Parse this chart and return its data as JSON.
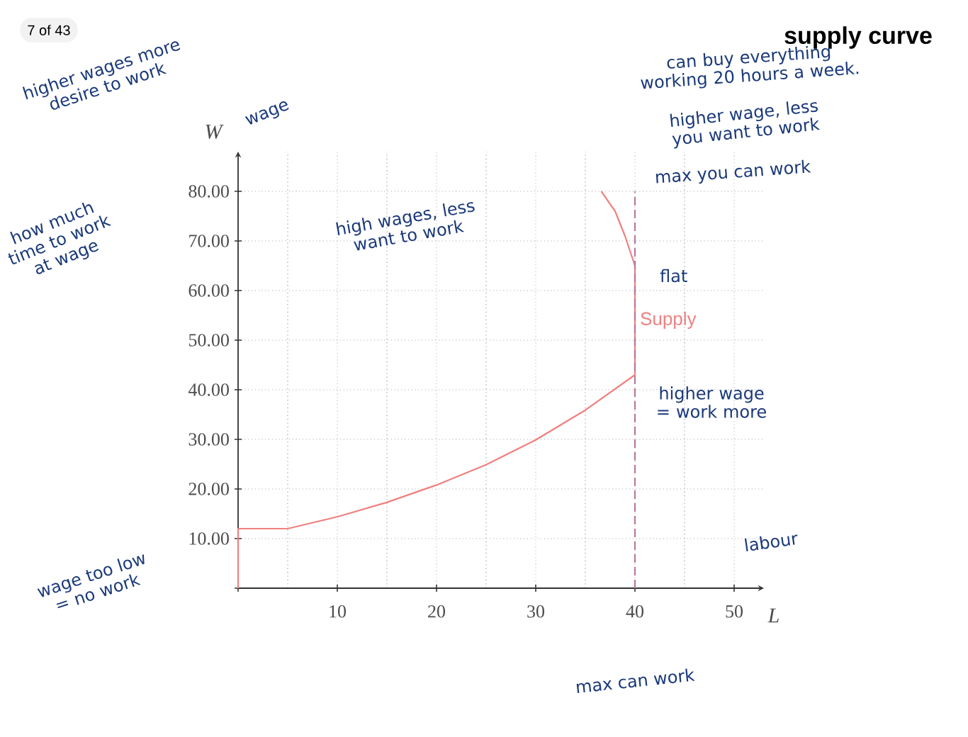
{
  "chart_data": {
    "type": "line",
    "title": "supply curve",
    "xlabel": "L",
    "ylabel": "W",
    "xlim": [
      0,
      53
    ],
    "ylim": [
      0,
      88
    ],
    "xticks": [
      {
        "value": 0,
        "label": null
      },
      10,
      20,
      30,
      40,
      50
    ],
    "yticks": [
      {
        "value": 0,
        "label": null
      },
      {
        "value": 10,
        "label": "10.00"
      },
      {
        "value": 20,
        "label": "20.00"
      },
      {
        "value": 30,
        "label": "30.00"
      },
      {
        "value": 40,
        "label": "40.00"
      },
      {
        "value": 50,
        "label": "50.00"
      },
      {
        "value": 60,
        "label": "60.00"
      },
      {
        "value": 70,
        "label": "70.00"
      },
      {
        "value": 80,
        "label": "80.00"
      }
    ],
    "grid": true,
    "legend": false,
    "marker": "none",
    "line_style": "solid",
    "series": [
      {
        "name": "Supply",
        "color": "#f08080",
        "x": [
          0,
          0,
          5,
          10,
          15,
          20,
          25,
          30,
          35,
          40,
          40,
          39,
          38,
          36.6
        ],
        "values": [
          0,
          12,
          12,
          14.4,
          17.3,
          20.8,
          24.9,
          29.9,
          35.9,
          43,
          65,
          71,
          76,
          80
        ]
      }
    ],
    "ref_lines": [
      {
        "axis": "x",
        "value": 40,
        "color": "#b8799b",
        "line_style": "dashed"
      }
    ],
    "annotations": [
      "7 of 43",
      "higher wages more desire to work",
      "wage",
      "how much time to work at wage",
      "high wages, less want to work",
      "can buy everything working 20 hours a week.",
      "higher wage, less you want to work",
      "max you can work",
      "flat",
      "higher wage = work more",
      "labour",
      "wage too low = no work",
      "max can work"
    ]
  }
}
